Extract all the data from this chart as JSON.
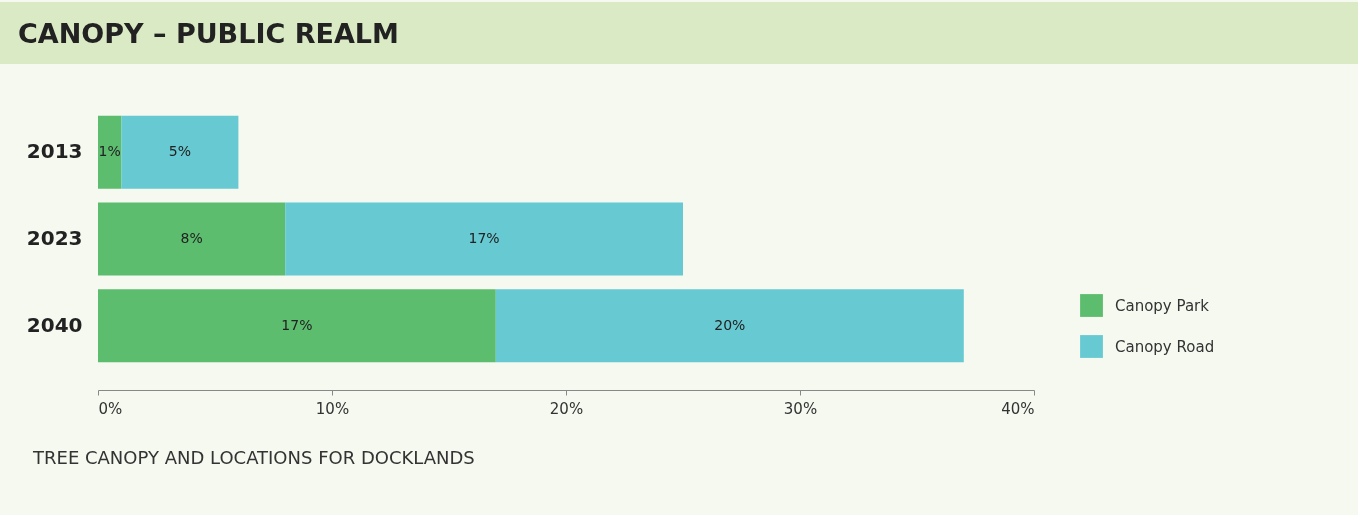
{
  "chart_data": {
    "type": "bar",
    "orientation": "horizontal",
    "stacked": true,
    "title": "CANOPY – PUBLIC REALM",
    "categories": [
      "2013",
      "2023",
      "2040"
    ],
    "series": [
      {
        "name": "Canopy Park",
        "color": "#5cbd6e",
        "values": [
          1,
          8,
          17
        ],
        "value_labels": [
          "1%",
          "8%",
          "17%"
        ]
      },
      {
        "name": "Canopy Road",
        "color": "#67c9d1",
        "values": [
          5,
          17,
          20
        ],
        "value_labels": [
          "5%",
          "17%",
          "20%"
        ]
      }
    ],
    "xlim": [
      0,
      40
    ],
    "xticks": [
      {
        "value": 0,
        "label": "0%"
      },
      {
        "value": 10,
        "label": "10%"
      },
      {
        "value": 20,
        "label": "20%"
      },
      {
        "value": 30,
        "label": "30%"
      },
      {
        "value": 40,
        "label": "40%"
      }
    ],
    "grid": false,
    "legend": "right",
    "annotations": [
      "TREE CANOPY AND LOCATIONS FOR DOCKLANDS"
    ]
  }
}
